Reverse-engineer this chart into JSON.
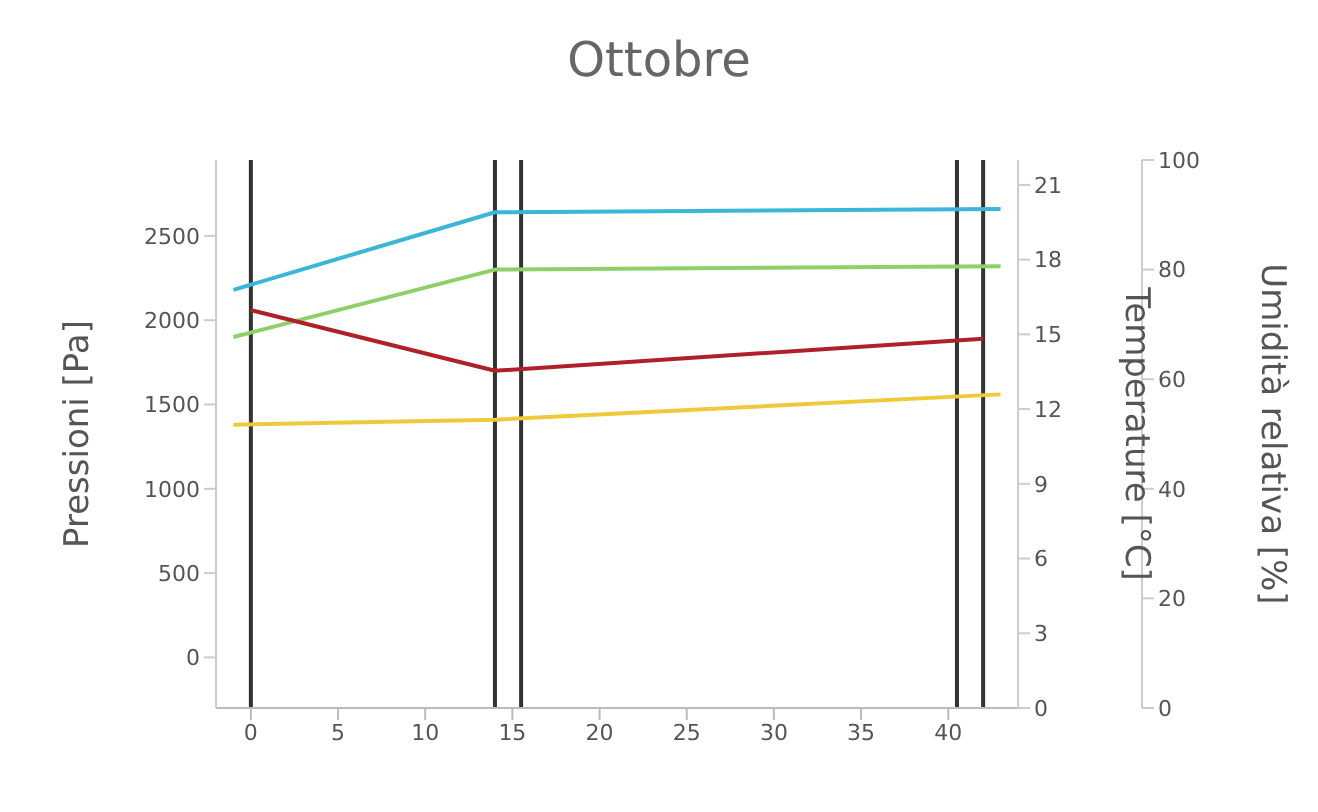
{
  "chart_data": {
    "type": "line",
    "title": "Ottobre",
    "ylabel": "Pressioni [Pa]",
    "y2label": "Temperature [°C]",
    "y3label": "Umidità relativa [%]",
    "xlim": [
      -2,
      44
    ],
    "xticks": [
      0,
      5,
      10,
      15,
      20,
      25,
      30,
      35,
      40
    ],
    "ylim": [
      -300,
      2950
    ],
    "yticks": [
      0,
      500,
      1000,
      1500,
      2000,
      2500
    ],
    "y2lim": [
      0,
      22
    ],
    "y2ticks": [
      0,
      3,
      6,
      9,
      12,
      15,
      18,
      21
    ],
    "y3lim": [
      0,
      100
    ],
    "y3ticks": [
      0,
      20,
      40,
      60,
      80,
      100
    ],
    "grid": false,
    "marker": "none",
    "line_style": "solid",
    "series": [
      {
        "color": "#3bb5d8",
        "x": [
          -1,
          14,
          43
        ],
        "values": [
          2180,
          2640,
          2660
        ]
      },
      {
        "color": "#8fcf6a",
        "x": [
          -1,
          14,
          43
        ],
        "values": [
          1900,
          2300,
          2320
        ]
      },
      {
        "color": "#b0202a",
        "x": [
          0,
          14,
          42
        ],
        "values": [
          2060,
          1700,
          1890
        ]
      },
      {
        "color": "#f0c93a",
        "x": [
          -1,
          14,
          43
        ],
        "values": [
          1380,
          1410,
          1560
        ]
      }
    ],
    "ref_lines": [
      {
        "axis": "x",
        "value": 0,
        "color": "#333333"
      },
      {
        "axis": "x",
        "value": 14,
        "color": "#333333"
      },
      {
        "axis": "x",
        "value": 15.5,
        "color": "#333333"
      },
      {
        "axis": "x",
        "value": 40.5,
        "color": "#333333"
      },
      {
        "axis": "x",
        "value": 42,
        "color": "#333333"
      }
    ]
  }
}
